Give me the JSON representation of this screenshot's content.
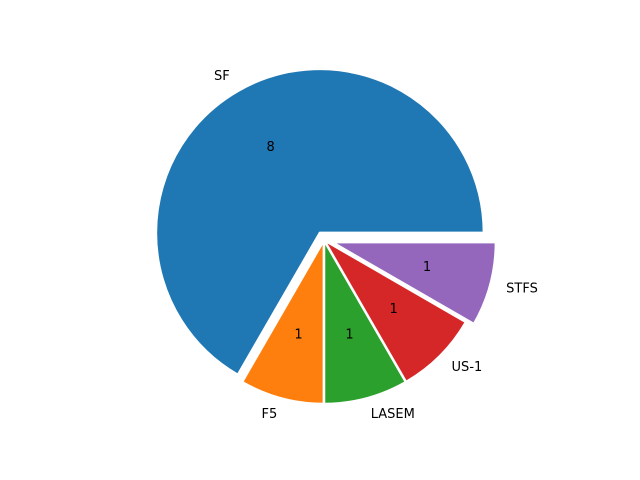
{
  "chart_data": {
    "type": "pie",
    "title": "",
    "labels": [
      "SF",
      "F5",
      "LASEM",
      "US-1",
      "STFS"
    ],
    "values": [
      8,
      1,
      1,
      1,
      1
    ],
    "value_labels": [
      "8",
      "1",
      "1",
      "1",
      "1"
    ],
    "exploded": [
      true,
      false,
      false,
      false,
      true
    ],
    "colors": [
      "#1f77b4",
      "#ff7f0e",
      "#2ca02c",
      "#d62728",
      "#9467bd"
    ],
    "start_angle_deg": 0,
    "direction": "counterclockwise",
    "edge_color": "#ffffff",
    "legend": "none"
  }
}
